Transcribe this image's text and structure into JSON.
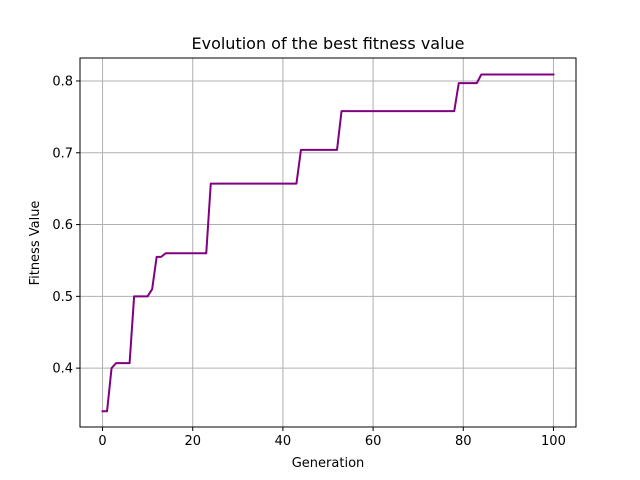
{
  "chart_data": {
    "type": "line",
    "title": "Evolution of the best fitness value",
    "xlabel": "Generation",
    "ylabel": "Fitness Value",
    "xlim": [
      -5,
      105
    ],
    "ylim": [
      0.318,
      0.832
    ],
    "xticks": [
      0,
      20,
      40,
      60,
      80,
      100
    ],
    "yticks": [
      0.4,
      0.5,
      0.6,
      0.7,
      0.8
    ],
    "xtick_labels": [
      "0",
      "20",
      "40",
      "60",
      "80",
      "100"
    ],
    "ytick_labels": [
      "0.4",
      "0.5",
      "0.6",
      "0.7",
      "0.8"
    ],
    "grid": true,
    "legend": "none",
    "series": [
      {
        "color": "#800080",
        "x": [
          0,
          1,
          2,
          3,
          6,
          7,
          10,
          11,
          12,
          13,
          14,
          23,
          24,
          43,
          44,
          52,
          53,
          78,
          79,
          83,
          84,
          100
        ],
        "y": [
          0.34,
          0.34,
          0.4,
          0.407,
          0.407,
          0.5,
          0.5,
          0.51,
          0.555,
          0.555,
          0.56,
          0.56,
          0.657,
          0.657,
          0.704,
          0.704,
          0.758,
          0.758,
          0.797,
          0.797,
          0.809,
          0.809
        ]
      }
    ]
  }
}
